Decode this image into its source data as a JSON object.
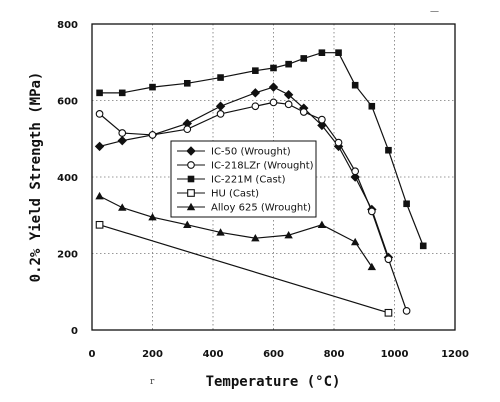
{
  "chart_data": {
    "type": "line",
    "title": "",
    "xlabel": "Temperature (°C)",
    "ylabel": "0.2% Yield Strength (MPa)",
    "xlim": [
      0,
      1200
    ],
    "ylim": [
      0,
      800
    ],
    "xticks": [
      "0",
      "200",
      "400",
      "600",
      "800",
      "1000",
      "1200"
    ],
    "yticks": [
      "0",
      "200",
      "400",
      "600",
      "800"
    ],
    "grid": "dotted",
    "legend_position": "center",
    "series": [
      {
        "name": "IC-50 (Wrought)",
        "marker": "filled-diamond",
        "x": [
          25,
          100,
          200,
          315,
          425,
          540,
          600,
          650,
          700,
          760,
          815,
          870,
          925,
          980
        ],
        "y": [
          480,
          495,
          510,
          540,
          585,
          620,
          635,
          615,
          580,
          535,
          480,
          400,
          315,
          190
        ]
      },
      {
        "name": "IC-218LZr (Wrought)",
        "marker": "open-circle",
        "x": [
          25,
          100,
          200,
          315,
          425,
          540,
          600,
          650,
          700,
          760,
          815,
          870,
          925,
          980,
          1040
        ],
        "y": [
          565,
          515,
          510,
          525,
          565,
          585,
          595,
          590,
          570,
          550,
          490,
          415,
          310,
          185,
          50
        ]
      },
      {
        "name": "IC-221M (Cast)",
        "marker": "filled-square",
        "x": [
          25,
          100,
          200,
          315,
          425,
          540,
          600,
          650,
          700,
          760,
          815,
          870,
          925,
          980,
          1040,
          1095
        ],
        "y": [
          620,
          620,
          635,
          645,
          660,
          678,
          685,
          695,
          710,
          725,
          725,
          640,
          585,
          470,
          330,
          220
        ]
      },
      {
        "name": "HU (Cast)",
        "marker": "open-square",
        "x": [
          25,
          980
        ],
        "y": [
          275,
          45
        ]
      },
      {
        "name": "Alloy 625 (Wrought)",
        "marker": "filled-triangle",
        "x": [
          25,
          100,
          200,
          315,
          425,
          540,
          650,
          760,
          870,
          925
        ],
        "y": [
          350,
          320,
          295,
          275,
          255,
          240,
          248,
          275,
          230,
          165
        ]
      }
    ]
  },
  "stray_marks": {
    "left": "r",
    "top_right": "—"
  }
}
